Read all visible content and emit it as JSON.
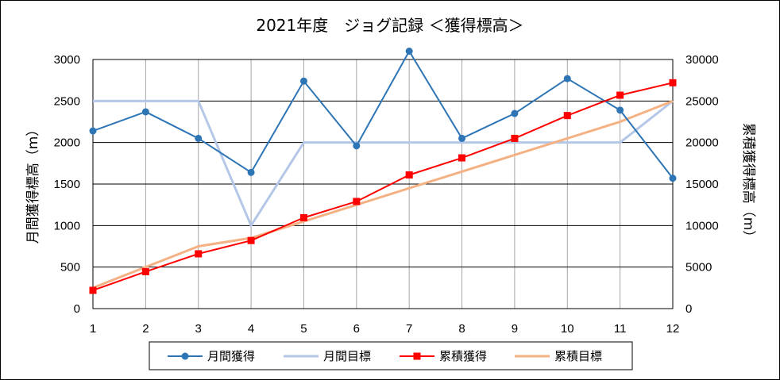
{
  "chart_data": {
    "type": "line",
    "title": "2021年度　ジョグ記録 ＜獲得標高＞",
    "xlabel": "",
    "ylabel": "月間獲得標高（m）",
    "y2label": "累積獲得標高（m）",
    "categories": [
      "1",
      "2",
      "3",
      "4",
      "5",
      "6",
      "7",
      "8",
      "9",
      "10",
      "11",
      "12"
    ],
    "ylim": [
      0,
      3000
    ],
    "yticks": [
      "0",
      "500",
      "1000",
      "1500",
      "2000",
      "2500",
      "3000"
    ],
    "y2lim": [
      0,
      30000
    ],
    "y2ticks": [
      "0",
      "5000",
      "10000",
      "15000",
      "20000",
      "25000",
      "30000"
    ],
    "grid": true,
    "legend_position": "bottom",
    "series": [
      {
        "name": "月間獲得",
        "axis": "left",
        "color": "#2E75B6",
        "marker": "circle",
        "values": [
          2140,
          2370,
          2050,
          1640,
          2740,
          1960,
          3100,
          2050,
          2350,
          2770,
          2390,
          1570
        ]
      },
      {
        "name": "月間目標",
        "axis": "left",
        "color": "#B4C7E7",
        "marker": "none",
        "values": [
          2500,
          2500,
          2500,
          1000,
          2000,
          2000,
          2000,
          2000,
          2000,
          2000,
          2000,
          2500
        ]
      },
      {
        "name": "累積獲得",
        "axis": "right",
        "color": "#FF0000",
        "marker": "square",
        "values": [
          2200,
          4450,
          6600,
          8200,
          10950,
          12900,
          16100,
          18150,
          20500,
          23250,
          25700,
          27200
        ]
      },
      {
        "name": "累積目標",
        "axis": "right",
        "color": "#F4B183",
        "marker": "none",
        "values": [
          2500,
          5000,
          7500,
          8500,
          10500,
          12500,
          14500,
          16500,
          18500,
          20500,
          22500,
          25000
        ]
      }
    ]
  }
}
